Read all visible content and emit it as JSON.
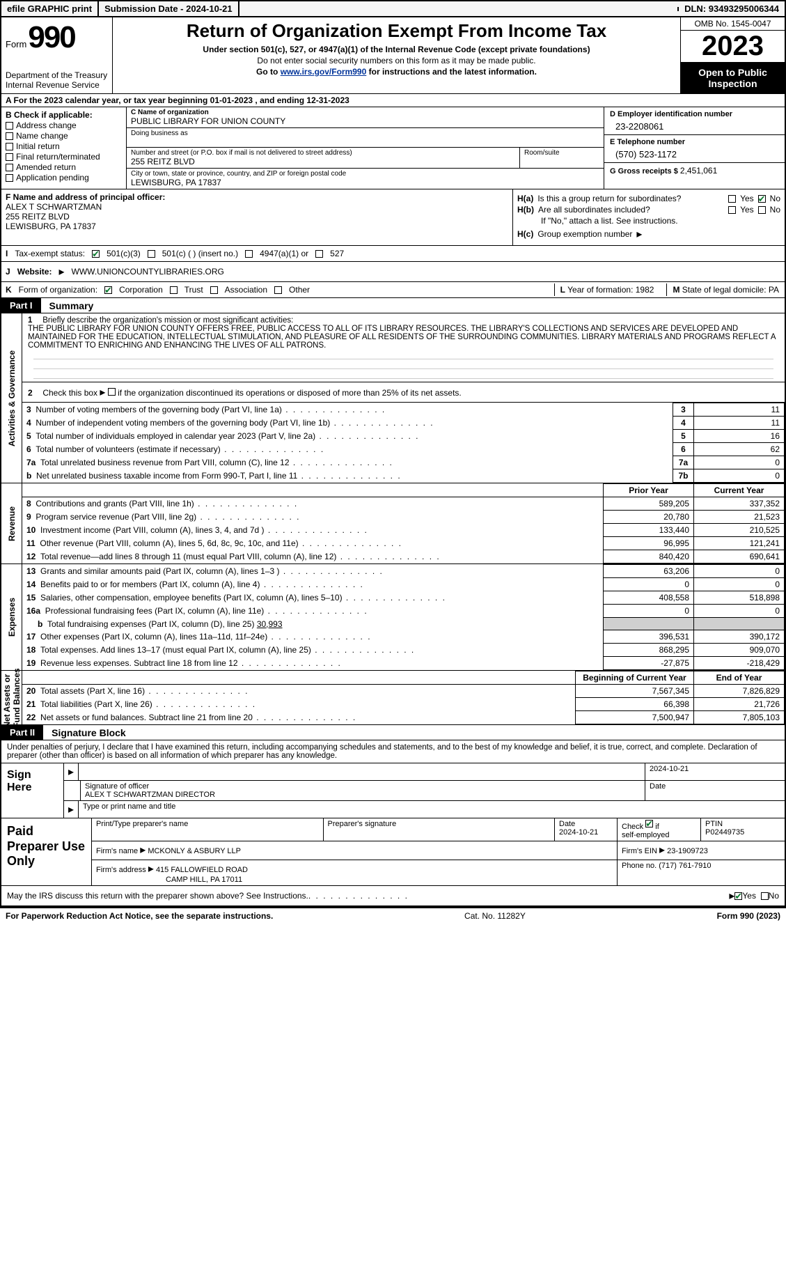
{
  "topbar": {
    "efile": "efile GRAPHIC print",
    "submission_label": "Submission Date - ",
    "submission_date": "2024-10-21",
    "dln_label": "DLN: ",
    "dln": "93493295006344"
  },
  "header": {
    "form_word": "Form",
    "form_num": "990",
    "dept": "Department of the Treasury\nInternal Revenue Service",
    "title": "Return of Organization Exempt From Income Tax",
    "sub": "Under section 501(c), 527, or 4947(a)(1) of the Internal Revenue Code (except private foundations)",
    "note1": "Do not enter social security numbers on this form as it may be made public.",
    "note2_pre": "Go to ",
    "note2_link": "www.irs.gov/Form990",
    "note2_post": " for instructions and the latest information.",
    "omb": "OMB No. 1545-0047",
    "year": "2023",
    "inspect": "Open to Public Inspection"
  },
  "lineA": {
    "text_pre": "A For the 2023 calendar year, or tax year beginning ",
    "begin": "01-01-2023",
    "mid": "   , and ending ",
    "end": "12-31-2023"
  },
  "boxB": {
    "label": "B Check if applicable:",
    "items": [
      "Address change",
      "Name change",
      "Initial return",
      "Final return/terminated",
      "Amended return",
      "Application pending"
    ]
  },
  "boxC": {
    "name_label": "C Name of organization",
    "name": "PUBLIC LIBRARY FOR UNION COUNTY",
    "dba_label": "Doing business as",
    "dba": "",
    "addr_label": "Number and street (or P.O. box if mail is not delivered to street address)",
    "addr": "255 REITZ BLVD",
    "room_label": "Room/suite",
    "city_label": "City or town, state or province, country, and ZIP or foreign postal code",
    "city": "LEWISBURG, PA  17837"
  },
  "boxD": {
    "ein_label": "D Employer identification number",
    "ein": "23-2208061",
    "phone_label": "E Telephone number",
    "phone": "(570) 523-1172",
    "gross_label": "G Gross receipts $ ",
    "gross": "2,451,061"
  },
  "boxF": {
    "label": "F  Name and address of principal officer:",
    "name": "ALEX T SCHWARTZMAN",
    "addr1": "255 REITZ BLVD",
    "addr2": "LEWISBURG, PA  17837"
  },
  "boxH": {
    "a_label": "H(a)",
    "a_text": "Is this a group return for subordinates?",
    "b_label": "H(b)",
    "b_text": "Are all subordinates included?",
    "b_note": "If \"No,\" attach a list. See instructions.",
    "c_label": "H(c)",
    "c_text": "Group exemption number  ",
    "yes": "Yes",
    "no": "No"
  },
  "rowI": {
    "label": "I",
    "text": "Tax-exempt status:",
    "opt1": "501(c)(3)",
    "opt2": "501(c) (  ) (insert no.)",
    "opt3": "4947(a)(1) or",
    "opt4": "527"
  },
  "rowJ": {
    "label": "J",
    "text": "Website: ",
    "url": "WWW.UNIONCOUNTYLIBRARIES.ORG"
  },
  "rowK": {
    "label": "K",
    "text": "Form of organization:",
    "opts": [
      "Corporation",
      "Trust",
      "Association",
      "Other"
    ],
    "l_label": "L",
    "l_text": "Year of formation: ",
    "l_val": "1982",
    "m_label": "M",
    "m_text": "State of legal domicile: ",
    "m_val": "PA"
  },
  "part1": {
    "tag": "Part I",
    "title": "Summary"
  },
  "mission": {
    "num": "1",
    "label": "Briefly describe the organization's mission or most significant activities:",
    "text": "THE PUBLIC LIBRARY FOR UNION COUNTY OFFERS FREE, PUBLIC ACCESS TO ALL OF ITS LIBRARY RESOURCES. THE LIBRARY'S COLLECTIONS AND SERVICES ARE DEVELOPED AND MAINTAINED FOR THE EDUCATION, INTELLECTUAL STIMULATION, AND PLEASURE OF ALL RESIDENTS OF THE SURROUNDING COMMUNITIES. LIBRARY MATERIALS AND PROGRAMS REFLECT A COMMITMENT TO ENRICHING AND ENHANCING THE LIVES OF ALL PATRONS."
  },
  "gov": {
    "vlabel": "Activities & Governance",
    "l2": "Check this box       if the organization discontinued its operations or disposed of more than 25% of its net assets.",
    "rows": [
      {
        "n": "3",
        "t": "Number of voting members of the governing body (Part VI, line 1a)",
        "c": "3",
        "v": "11"
      },
      {
        "n": "4",
        "t": "Number of independent voting members of the governing body (Part VI, line 1b)",
        "c": "4",
        "v": "11"
      },
      {
        "n": "5",
        "t": "Total number of individuals employed in calendar year 2023 (Part V, line 2a)",
        "c": "5",
        "v": "16"
      },
      {
        "n": "6",
        "t": "Total number of volunteers (estimate if necessary)",
        "c": "6",
        "v": "62"
      },
      {
        "n": "7a",
        "t": "Total unrelated business revenue from Part VIII, column (C), line 12",
        "c": "7a",
        "v": "0"
      },
      {
        "n": "b",
        "t": "Net unrelated business taxable income from Form 990-T, Part I, line 11",
        "c": "7b",
        "v": "0"
      }
    ]
  },
  "rev": {
    "vlabel": "Revenue",
    "hdr_prior": "Prior Year",
    "hdr_curr": "Current Year",
    "rows": [
      {
        "n": "8",
        "t": "Contributions and grants (Part VIII, line 1h)",
        "p": "589,205",
        "c": "337,352"
      },
      {
        "n": "9",
        "t": "Program service revenue (Part VIII, line 2g)",
        "p": "20,780",
        "c": "21,523"
      },
      {
        "n": "10",
        "t": "Investment income (Part VIII, column (A), lines 3, 4, and 7d )",
        "p": "133,440",
        "c": "210,525"
      },
      {
        "n": "11",
        "t": "Other revenue (Part VIII, column (A), lines 5, 6d, 8c, 9c, 10c, and 11e)",
        "p": "96,995",
        "c": "121,241"
      },
      {
        "n": "12",
        "t": "Total revenue—add lines 8 through 11 (must equal Part VIII, column (A), line 12)",
        "p": "840,420",
        "c": "690,641"
      }
    ]
  },
  "exp": {
    "vlabel": "Expenses",
    "rows": [
      {
        "n": "13",
        "t": "Grants and similar amounts paid (Part IX, column (A), lines 1–3 )",
        "p": "63,206",
        "c": "0"
      },
      {
        "n": "14",
        "t": "Benefits paid to or for members (Part IX, column (A), line 4)",
        "p": "0",
        "c": "0"
      },
      {
        "n": "15",
        "t": "Salaries, other compensation, employee benefits (Part IX, column (A), lines 5–10)",
        "p": "408,558",
        "c": "518,898"
      },
      {
        "n": "16a",
        "t": "Professional fundraising fees (Part IX, column (A), line 11e)",
        "p": "0",
        "c": "0"
      }
    ],
    "row_b": {
      "n": "b",
      "t": "Total fundraising expenses (Part IX, column (D), line 25) ",
      "v": "30,993"
    },
    "rows2": [
      {
        "n": "17",
        "t": "Other expenses (Part IX, column (A), lines 11a–11d, 11f–24e)",
        "p": "396,531",
        "c": "390,172"
      },
      {
        "n": "18",
        "t": "Total expenses. Add lines 13–17 (must equal Part IX, column (A), line 25)",
        "p": "868,295",
        "c": "909,070"
      },
      {
        "n": "19",
        "t": "Revenue less expenses. Subtract line 18 from line 12",
        "p": "-27,875",
        "c": "-218,429"
      }
    ]
  },
  "net": {
    "vlabel": "Net Assets or\nFund Balances",
    "hdr_beg": "Beginning of Current Year",
    "hdr_end": "End of Year",
    "rows": [
      {
        "n": "20",
        "t": "Total assets (Part X, line 16)",
        "p": "7,567,345",
        "c": "7,826,829"
      },
      {
        "n": "21",
        "t": "Total liabilities (Part X, line 26)",
        "p": "66,398",
        "c": "21,726"
      },
      {
        "n": "22",
        "t": "Net assets or fund balances. Subtract line 21 from line 20",
        "p": "7,500,947",
        "c": "7,805,103"
      }
    ]
  },
  "part2": {
    "tag": "Part II",
    "title": "Signature Block"
  },
  "sig": {
    "intro": "Under penalties of perjury, I declare that I have examined this return, including accompanying schedules and statements, and to the best of my knowledge and belief, it is true, correct, and complete. Declaration of preparer (other than officer) is based on all information of which preparer has any knowledge.",
    "sign_here": "Sign Here",
    "date": "2024-10-21",
    "sig_label": "Signature of officer",
    "officer": "ALEX T SCHWARTZMAN  DIRECTOR",
    "date_label": "Date",
    "type_label": "Type or print name and title"
  },
  "prep": {
    "title": "Paid Preparer Use Only",
    "h1": "Print/Type preparer's name",
    "h2": "Preparer's signature",
    "h3": "Date",
    "h3v": "2024-10-21",
    "h4": "Check        if self-employed",
    "h5": "PTIN",
    "h5v": "P02449735",
    "firm_label": "Firm's name     ",
    "firm": "MCKONLY & ASBURY LLP",
    "ein_label": "Firm's EIN  ",
    "ein": "23-1909723",
    "addr_label": "Firm's address ",
    "addr1": "415 FALLOWFIELD ROAD",
    "addr2": "CAMP HILL, PA  17011",
    "phone_label": "Phone no. ",
    "phone": "(717) 761-7910"
  },
  "discuss": {
    "text": "May the IRS discuss this return with the preparer shown above? See Instructions.",
    "yes": "Yes",
    "no": "No"
  },
  "footer": {
    "left": "For Paperwork Reduction Act Notice, see the separate instructions.",
    "mid": "Cat. No. 11282Y",
    "right_pre": "Form ",
    "right_form": "990",
    "right_post": " (2023)"
  }
}
